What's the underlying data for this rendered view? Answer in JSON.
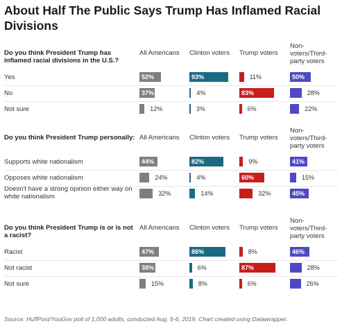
{
  "title": "About Half The Public Says Trump Has Inflamed Racial Divisions",
  "columns": [
    "All Americans",
    "Clinton voters",
    "Trump voters",
    "Non-voters/Third-party voters"
  ],
  "colors": {
    "All Americans": "#7f7f7f",
    "Clinton voters": "#1b6a84",
    "Trump voters": "#c71e1d",
    "Non-voters/Third-party voters": "#4e48c7"
  },
  "source": "Source: HuffPost/YouGov poll of 1,000 adults, conducted Aug. 5-6, 2019. Chart created using Datawrapper.",
  "chart_data": {
    "type": "bar",
    "value_suffix": "%",
    "xlim": [
      0,
      100
    ],
    "groups": [
      {
        "question": "Do you think President Trump has inflamed racial divisions in the U.S.?",
        "rows": [
          {
            "label": "Yes",
            "values": [
              52,
              93,
              11,
              50
            ]
          },
          {
            "label": "No",
            "values": [
              37,
              4,
              83,
              28
            ]
          },
          {
            "label": "Not sure",
            "values": [
              12,
              3,
              6,
              22
            ]
          }
        ]
      },
      {
        "question": "Do you think President Trump personally:",
        "rows": [
          {
            "label": "Supports white nationalism",
            "values": [
              44,
              82,
              9,
              41
            ]
          },
          {
            "label": "Opposes white nationalism",
            "values": [
              24,
              4,
              60,
              15
            ]
          },
          {
            "label": "Doesn't have a strong opinion either way on white nationalism",
            "values": [
              32,
              14,
              32,
              45
            ]
          }
        ]
      },
      {
        "question": "Do you think President Trump is or is not a racist?",
        "rows": [
          {
            "label": "Racist",
            "values": [
              47,
              86,
              8,
              46
            ]
          },
          {
            "label": "Not racist",
            "values": [
              38,
              6,
              87,
              28
            ]
          },
          {
            "label": "Not sure",
            "values": [
              15,
              8,
              6,
              26
            ]
          }
        ]
      }
    ]
  }
}
